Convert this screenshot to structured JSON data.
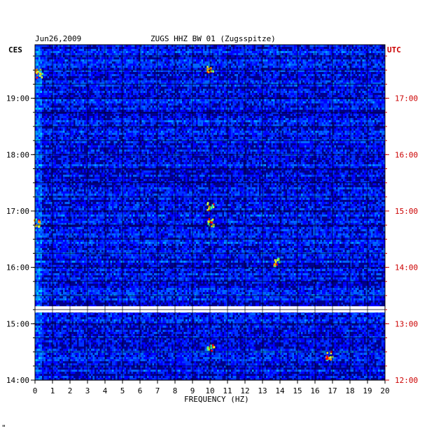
{
  "header": {
    "date": "Jun26,2009",
    "station": "ZUGS HHZ BW 01 (Zugsspitze)",
    "left_zone": "CES",
    "right_zone": "UTC"
  },
  "footer": {
    "mark": "\""
  },
  "colors": {
    "left_axis": "#000000",
    "right_axis": "#cc0000",
    "gap": "#ffffff",
    "background": "#00008b"
  },
  "chart_data": {
    "type": "heatmap",
    "xlabel": "FREQUENCY (HZ)",
    "xlim": [
      0,
      20
    ],
    "x_ticks": [
      "0",
      "1",
      "2",
      "3",
      "4",
      "5",
      "6",
      "7",
      "8",
      "9",
      "10",
      "11",
      "12",
      "13",
      "14",
      "15",
      "16",
      "17",
      "18",
      "19",
      "20"
    ],
    "y_left_ticks": [
      {
        "label": "19:00",
        "hour": 19
      },
      {
        "label": "18:00",
        "hour": 18
      },
      {
        "label": "17:00",
        "hour": 17
      },
      {
        "label": "16:00",
        "hour": 16
      },
      {
        "label": "15:00",
        "hour": 15
      },
      {
        "label": "14:00",
        "hour": 14
      }
    ],
    "y_right_ticks": [
      {
        "label": "17:00",
        "hour": 17
      },
      {
        "label": "16:00",
        "hour": 16
      },
      {
        "label": "15:00",
        "hour": 15
      },
      {
        "label": "14:00",
        "hour": 14
      },
      {
        "label": "13:00",
        "hour": 13
      },
      {
        "label": "12:00",
        "hour": 12
      }
    ],
    "ylim_left_hours": [
      14,
      19.95
    ],
    "data_gaps_hours": [
      [
        15.2,
        15.31
      ]
    ],
    "hot_spots": [
      {
        "freq": 10,
        "hour": 19.55
      },
      {
        "freq": 0.2,
        "hour": 19.45
      },
      {
        "freq": 10,
        "hour": 17.1
      },
      {
        "freq": 10,
        "hour": 16.8
      },
      {
        "freq": 0.1,
        "hour": 16.8
      },
      {
        "freq": 10,
        "hour": 14.6
      },
      {
        "freq": 13.8,
        "hour": 16.1
      },
      {
        "freq": 16.8,
        "hour": 14.45
      }
    ]
  }
}
